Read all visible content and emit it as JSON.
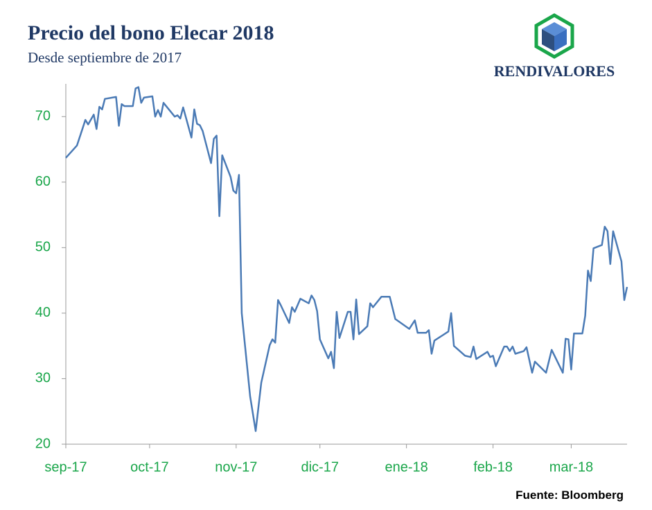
{
  "chart_data": {
    "type": "line",
    "title": "Precio del bono Elecar 2018",
    "subtitle": "Desde septiembre de 2017",
    "logo": "RENDIVALORES",
    "source": "Fuente: Bloomberg",
    "color": "#4a7ab5",
    "x": [
      0,
      4,
      6,
      7,
      8,
      10,
      11,
      12,
      13,
      14,
      18,
      19,
      20,
      21,
      24,
      25,
      26,
      27,
      28,
      31,
      32,
      33,
      34,
      35,
      39,
      40,
      41,
      42,
      45,
      46,
      47,
      48,
      49,
      52,
      53,
      54,
      55,
      56,
      59,
      60,
      61,
      62,
      63,
      66,
      68,
      70,
      73,
      74,
      75,
      76,
      77,
      80,
      81,
      82,
      84,
      87,
      88,
      89,
      90,
      91,
      94,
      95,
      96,
      97,
      98,
      101,
      102,
      103,
      104,
      105,
      108,
      109,
      110,
      113,
      116,
      118,
      123,
      125,
      126,
      129,
      130,
      131,
      132,
      137,
      138,
      139,
      143,
      145,
      146,
      147,
      151,
      152,
      153,
      154,
      157,
      158,
      159,
      160,
      161,
      164,
      165,
      167,
      168,
      172,
      174,
      178,
      179,
      180,
      181,
      182,
      185,
      186,
      187,
      188,
      189,
      192,
      193,
      194,
      195,
      196,
      199,
      200,
      201
    ],
    "values": [
      63.7,
      65.6,
      68.2,
      69.5,
      68.8,
      70.3,
      68.1,
      71.5,
      71.1,
      72.7,
      73.0,
      68.6,
      71.9,
      71.6,
      71.6,
      74.3,
      74.5,
      72.1,
      72.9,
      73.1,
      70.0,
      71.0,
      70.0,
      72.1,
      70.0,
      70.2,
      69.7,
      71.4,
      66.8,
      71.1,
      68.9,
      68.7,
      67.8,
      62.9,
      66.6,
      67.1,
      54.8,
      64.1,
      60.8,
      58.7,
      58.3,
      61.1,
      40.0,
      27.3,
      22.0,
      29.4,
      35.1,
      36.0,
      35.5,
      42.0,
      41.2,
      38.5,
      40.9,
      40.2,
      42.2,
      41.5,
      42.7,
      42.0,
      40.3,
      36.0,
      33.1,
      34.1,
      31.6,
      40.2,
      36.2,
      40.2,
      40.2,
      36.0,
      42.1,
      36.8,
      38.0,
      41.5,
      40.9,
      42.5,
      42.5,
      39.1,
      37.6,
      38.9,
      37.0,
      37.0,
      37.4,
      33.8,
      35.8,
      37.2,
      40.0,
      35.0,
      33.5,
      33.3,
      34.9,
      33.0,
      34.1,
      33.3,
      33.5,
      31.9,
      34.9,
      34.9,
      34.2,
      34.9,
      33.8,
      34.2,
      34.8,
      30.9,
      32.6,
      30.9,
      34.4,
      30.9,
      36.1,
      36.0,
      31.4,
      36.9,
      36.9,
      39.6,
      46.5,
      44.9,
      49.9,
      50.4,
      53.2,
      52.5,
      47.5,
      52.5,
      47.9,
      42.0,
      44.0
    ],
    "xlim": [
      0,
      201
    ],
    "xticks": [
      {
        "value": 0,
        "label": "sep-17"
      },
      {
        "value": 30,
        "label": "oct-17"
      },
      {
        "value": 61,
        "label": "nov-17"
      },
      {
        "value": 91,
        "label": "dic-17"
      },
      {
        "value": 122,
        "label": "ene-18"
      },
      {
        "value": 153,
        "label": "feb-18"
      },
      {
        "value": 181,
        "label": "mar-18"
      }
    ],
    "ylim": [
      20,
      75
    ],
    "yticks": [
      20,
      30,
      40,
      50,
      60,
      70
    ],
    "grid": false
  }
}
